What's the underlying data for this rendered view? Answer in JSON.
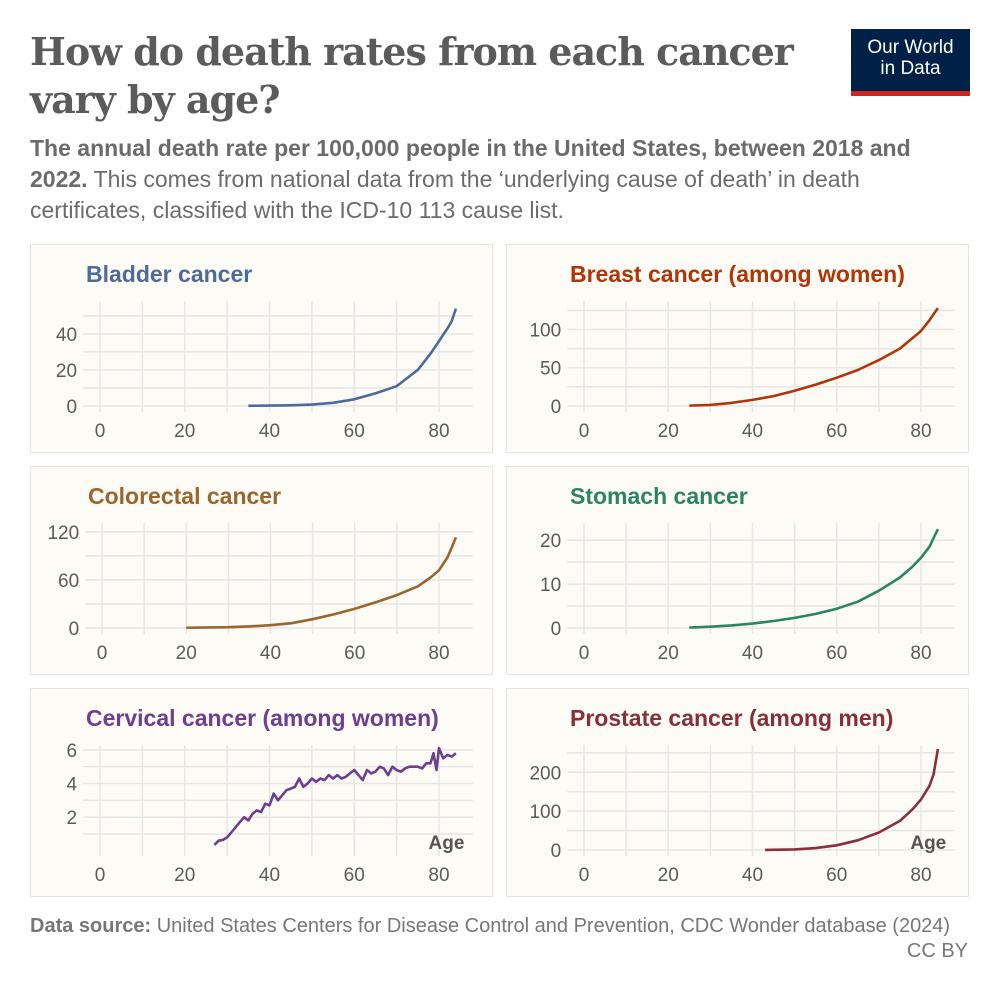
{
  "title": "How do death rates from each cancer vary by age?",
  "logo": {
    "line1": "Our World",
    "line2": "in Data"
  },
  "subtitle": {
    "bold": "The annual death rate per 100,000 people in the United States, between 2018 and 2022.",
    "rest": " This comes from national data from the ‘underlying cause of death’ in death certificates, classified with the ICD-10 113 cause list."
  },
  "footer": {
    "label": "Data source:",
    "text": " United States Centers for Disease Control and Prevention, CDC Wonder database (2024)"
  },
  "license": "CC BY",
  "chart_data": [
    {
      "type": "line",
      "title": "Bladder cancer",
      "color": "#4c6a9c",
      "xlabel": "",
      "xticks": [
        0,
        20,
        40,
        60,
        80
      ],
      "yticks": [
        0,
        20,
        40
      ],
      "ylim": [
        0,
        56
      ],
      "xlim": [
        -4,
        88
      ],
      "x": [
        35,
        40,
        45,
        50,
        55,
        60,
        65,
        70,
        75,
        78,
        80,
        82,
        83,
        84
      ],
      "y": [
        0.1,
        0.2,
        0.4,
        0.8,
        1.8,
        3.7,
        7,
        11,
        20,
        29,
        36,
        43,
        47,
        54
      ]
    },
    {
      "type": "line",
      "title": "Breast cancer (among women)",
      "color": "#b13507",
      "xlabel": "",
      "xticks": [
        0,
        20,
        40,
        60,
        80
      ],
      "yticks": [
        0,
        50,
        100
      ],
      "ylim": [
        0,
        132
      ],
      "xlim": [
        -4,
        88
      ],
      "x": [
        25,
        30,
        35,
        40,
        45,
        50,
        55,
        60,
        65,
        70,
        75,
        80,
        82,
        83,
        84
      ],
      "y": [
        0.5,
        1.5,
        4,
        8,
        13,
        20,
        28,
        37,
        47,
        60,
        75,
        98,
        112,
        120,
        128
      ]
    },
    {
      "type": "line",
      "title": "Colorectal cancer",
      "color": "#9a652e",
      "xlabel": "",
      "xticks": [
        0,
        20,
        40,
        60,
        80
      ],
      "yticks": [
        0,
        60,
        120
      ],
      "ylim": [
        0,
        126
      ],
      "xlim": [
        -4,
        88
      ],
      "x": [
        20,
        30,
        35,
        40,
        45,
        50,
        55,
        60,
        65,
        70,
        75,
        78,
        80,
        82,
        83,
        84
      ],
      "y": [
        0.3,
        1,
        2,
        3.5,
        6,
        11,
        17,
        24,
        32,
        41,
        52,
        63,
        72,
        88,
        100,
        113
      ]
    },
    {
      "type": "line",
      "title": "Stomach cancer",
      "color": "#2c8465",
      "xlabel": "",
      "xticks": [
        0,
        20,
        40,
        60,
        80
      ],
      "yticks": [
        0,
        10,
        20
      ],
      "ylim": [
        0,
        23
      ],
      "xlim": [
        -4,
        88
      ],
      "x": [
        25,
        30,
        35,
        40,
        45,
        50,
        55,
        60,
        65,
        70,
        75,
        78,
        80,
        82,
        83,
        84
      ],
      "y": [
        0.1,
        0.3,
        0.6,
        1,
        1.6,
        2.3,
        3.2,
        4.4,
        6,
        8.5,
        11.5,
        14,
        16,
        18.5,
        20.5,
        22.5
      ]
    },
    {
      "type": "line",
      "title": "Cervical cancer (among women)",
      "color": "#6d3e91",
      "xlabel": "Age",
      "xticks": [
        0,
        20,
        40,
        60,
        80
      ],
      "yticks": [
        2,
        4,
        6
      ],
      "ylim": [
        0.05,
        6.05
      ],
      "xlim": [
        -4,
        88
      ],
      "x": [
        27,
        28,
        29,
        30,
        31,
        32,
        33,
        34,
        35,
        36,
        37,
        38,
        39,
        40,
        41,
        42,
        43,
        44,
        45,
        46,
        47,
        48,
        49,
        50,
        51,
        52,
        53,
        54,
        55,
        56,
        57,
        58,
        59,
        60,
        61,
        62,
        63,
        64,
        65,
        66,
        67,
        68,
        69,
        70,
        71,
        72,
        73,
        74,
        75,
        76,
        77,
        78,
        78.7,
        79.4,
        80,
        81,
        82,
        83,
        84
      ],
      "y": [
        0.35,
        0.6,
        0.65,
        0.8,
        1.1,
        1.4,
        1.7,
        2,
        1.8,
        2.2,
        2.4,
        2.3,
        2.8,
        2.7,
        3.4,
        3,
        3.3,
        3.6,
        3.7,
        3.8,
        4.3,
        3.8,
        4,
        4.3,
        4.1,
        4.3,
        4.2,
        4.5,
        4.3,
        4.5,
        4.3,
        4.4,
        4.6,
        4.8,
        4.5,
        4.2,
        4.8,
        4.6,
        4.7,
        5,
        4.9,
        4.5,
        5,
        4.8,
        4.7,
        4.9,
        5,
        5,
        5,
        4.9,
        5.2,
        5.2,
        5.8,
        4.8,
        6.1,
        5.5,
        5.7,
        5.6,
        5.8
      ]
    },
    {
      "type": "line",
      "title": "Prostate cancer (among men)",
      "color": "#883039",
      "xlabel": "Age",
      "xticks": [
        0,
        20,
        40,
        60,
        80
      ],
      "yticks": [
        0,
        100,
        200
      ],
      "ylim": [
        0,
        260
      ],
      "xlim": [
        -4,
        88
      ],
      "x": [
        43,
        50,
        55,
        60,
        65,
        70,
        75,
        78,
        80,
        82,
        83,
        84
      ],
      "y": [
        0.1,
        1.5,
        5,
        12,
        25,
        45,
        75,
        105,
        130,
        165,
        195,
        260
      ]
    }
  ]
}
